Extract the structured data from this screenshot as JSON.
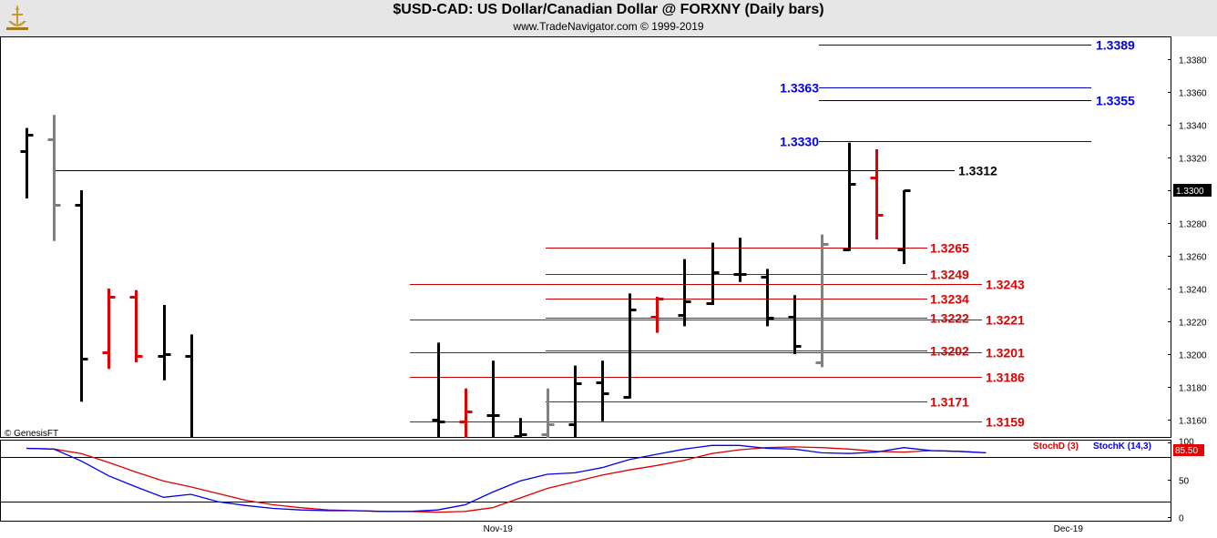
{
  "header": {
    "title": "$USD-CAD:  US Dollar/Canadian Dollar @ FORXNY  (Daily bars)",
    "subtitle": "www.TradeNavigator.com © 1999-2019",
    "logo_icon": "trade-navigator-logo-icon"
  },
  "copyright": "© GenesisFT",
  "chart_data": [
    {
      "type": "ohlc",
      "ylim": [
        1.3142,
        1.3398
      ],
      "ticks": [
        1.316,
        1.318,
        1.32,
        1.322,
        1.324,
        1.326,
        1.328,
        1.33,
        1.332,
        1.334,
        1.336,
        1.338
      ],
      "tick_labels": [
        "1.3160",
        "1.3180",
        "1.3200",
        "1.3220",
        "1.3240",
        "1.3260",
        "1.3280",
        "1.3300",
        "1.3320",
        "1.3340",
        "1.3360",
        "1.3380"
      ],
      "last_price_label": "1.3300",
      "last_price": 1.33,
      "colors": {
        "up": "#000000",
        "down": "#e00000",
        "neutral": "#808080"
      },
      "bars": [
        {
          "slot": 0,
          "o": 1.3324,
          "h": 1.3338,
          "l": 1.3295,
          "c": 1.3334,
          "color": "black"
        },
        {
          "slot": 1,
          "o": 1.3331,
          "h": 1.3346,
          "l": 1.3269,
          "c": 1.3291,
          "color": "gray"
        },
        {
          "slot": 2,
          "o": 1.3291,
          "h": 1.33,
          "l": 1.3171,
          "c": 1.3197,
          "color": "black"
        },
        {
          "slot": 3,
          "o": 1.3201,
          "h": 1.324,
          "l": 1.3191,
          "c": 1.3235,
          "color": "red"
        },
        {
          "slot": 4,
          "o": 1.3235,
          "h": 1.3239,
          "l": 1.3195,
          "c": 1.3199,
          "color": "red"
        },
        {
          "slot": 5,
          "o": 1.3199,
          "h": 1.323,
          "l": 1.3184,
          "c": 1.32,
          "color": "black"
        },
        {
          "slot": 6,
          "o": 1.3199,
          "h": 1.3212,
          "l": 1.3142,
          "c": 1.3142,
          "color": "black"
        },
        {
          "slot": 15,
          "o": 1.316,
          "h": 1.3207,
          "l": 1.3142,
          "c": 1.3159,
          "color": "black"
        },
        {
          "slot": 16,
          "o": 1.3159,
          "h": 1.3179,
          "l": 1.3142,
          "c": 1.3165,
          "color": "red"
        },
        {
          "slot": 17,
          "o": 1.3163,
          "h": 1.3196,
          "l": 1.3142,
          "c": 1.3163,
          "color": "black"
        },
        {
          "slot": 18,
          "o": 1.315,
          "h": 1.3161,
          "l": 1.3142,
          "c": 1.3151,
          "color": "black"
        },
        {
          "slot": 19,
          "o": 1.3151,
          "h": 1.3179,
          "l": 1.3142,
          "c": 1.3157,
          "color": "gray"
        },
        {
          "slot": 20,
          "o": 1.3157,
          "h": 1.3193,
          "l": 1.3142,
          "c": 1.3182,
          "color": "black"
        },
        {
          "slot": 21,
          "o": 1.3183,
          "h": 1.3196,
          "l": 1.3159,
          "c": 1.3176,
          "color": "black"
        },
        {
          "slot": 22,
          "o": 1.3174,
          "h": 1.3237,
          "l": 1.3173,
          "c": 1.3227,
          "color": "black"
        },
        {
          "slot": 23,
          "o": 1.3223,
          "h": 1.3235,
          "l": 1.3213,
          "c": 1.3234,
          "color": "red"
        },
        {
          "slot": 24,
          "o": 1.3224,
          "h": 1.3258,
          "l": 1.3217,
          "c": 1.3232,
          "color": "black"
        },
        {
          "slot": 25,
          "o": 1.3231,
          "h": 1.3268,
          "l": 1.323,
          "c": 1.325,
          "color": "black"
        },
        {
          "slot": 26,
          "o": 1.3249,
          "h": 1.3271,
          "l": 1.3244,
          "c": 1.3249,
          "color": "black"
        },
        {
          "slot": 27,
          "o": 1.3247,
          "h": 1.3252,
          "l": 1.3217,
          "c": 1.3222,
          "color": "black"
        },
        {
          "slot": 28,
          "o": 1.3223,
          "h": 1.3236,
          "l": 1.32,
          "c": 1.3205,
          "color": "black"
        },
        {
          "slot": 29,
          "o": 1.3195,
          "h": 1.3273,
          "l": 1.3192,
          "c": 1.3267,
          "color": "gray"
        },
        {
          "slot": 30,
          "o": 1.3264,
          "h": 1.3329,
          "l": 1.3263,
          "c": 1.3304,
          "color": "black"
        },
        {
          "slot": 31,
          "o": 1.3308,
          "h": 1.3325,
          "l": 1.327,
          "c": 1.3285,
          "color": "red"
        },
        {
          "slot": 32,
          "o": 1.3264,
          "h": 1.33,
          "l": 1.3255,
          "c": 1.33,
          "color": "black"
        }
      ],
      "levels": [
        {
          "price": 1.3389,
          "label": "1.3389",
          "color": "#0000ee",
          "line": "blue"
        },
        {
          "price": 1.3363,
          "label": "1.3363",
          "color": "#0000ee",
          "line": "blue"
        },
        {
          "price": 1.3355,
          "label": "1.3355",
          "color": "#0000ee",
          "line": "black"
        },
        {
          "price": 1.333,
          "label": "1.3330",
          "color": "#0000ee",
          "line": "blue"
        },
        {
          "price": 1.3312,
          "label": "1.3312",
          "color": "#000000",
          "line": "black"
        },
        {
          "price": 1.3265,
          "label": "1.3265",
          "color": "#e00000",
          "line": "red"
        },
        {
          "price": 1.3249,
          "label": "1.3249",
          "color": "#e00000",
          "line": "red"
        },
        {
          "price": 1.3243,
          "label": "1.3243",
          "color": "#e00000",
          "line": "red"
        },
        {
          "price": 1.3234,
          "label": "1.3234",
          "color": "#e00000",
          "line": "red"
        },
        {
          "price": 1.3222,
          "label": "1.3222",
          "color": "#e00000",
          "line": "red"
        },
        {
          "price": 1.3221,
          "label": "1.3221",
          "color": "#e00000",
          "line": "red"
        },
        {
          "price": 1.3202,
          "label": "1.3202",
          "color": "#e00000",
          "line": "red"
        },
        {
          "price": 1.3201,
          "label": "1.3201",
          "color": "#e00000",
          "line": "red"
        },
        {
          "price": 1.3186,
          "label": "1.3186",
          "color": "#e00000",
          "line": "red"
        },
        {
          "price": 1.3171,
          "label": "1.3171",
          "color": "#e00000",
          "line": "red"
        },
        {
          "price": 1.3159,
          "label": "1.3159",
          "color": "#e00000",
          "line": "red"
        }
      ]
    },
    {
      "type": "line",
      "ylim": [
        0,
        100
      ],
      "ticks": [
        0,
        50,
        100
      ],
      "tick_labels": [
        "0",
        "50",
        "100"
      ],
      "reference_lines": [
        20,
        80
      ],
      "last_value_label": "85.50",
      "x_labels": [
        {
          "slot": 17.2,
          "label": "Nov-19"
        },
        {
          "slot": 38,
          "label": "Dec-19"
        }
      ],
      "series": [
        {
          "name": "StochD (3)",
          "color": "#e00000",
          "values": [
            [
              0,
              92
            ],
            [
              1,
              91
            ],
            [
              2,
              85
            ],
            [
              3,
              73
            ],
            [
              4,
              60
            ],
            [
              5,
              48
            ],
            [
              6,
              40
            ],
            [
              7,
              31
            ],
            [
              8,
              22
            ],
            [
              9,
              16
            ],
            [
              10,
              12
            ],
            [
              11,
              9
            ],
            [
              12,
              8
            ],
            [
              13,
              7
            ],
            [
              14,
              7
            ],
            [
              15,
              6
            ],
            [
              16,
              7
            ],
            [
              17,
              12
            ],
            [
              18,
              25
            ],
            [
              19,
              38
            ],
            [
              20,
              47
            ],
            [
              21,
              56
            ],
            [
              22,
              63
            ],
            [
              23,
              69
            ],
            [
              24,
              76
            ],
            [
              25,
              85
            ],
            [
              26,
              90
            ],
            [
              27,
              93
            ],
            [
              28,
              94
            ],
            [
              29,
              93
            ],
            [
              30,
              91
            ],
            [
              31,
              88
            ],
            [
              32,
              87
            ],
            [
              33,
              89
            ],
            [
              34,
              88
            ],
            [
              35,
              86
            ]
          ]
        },
        {
          "name": "StochK (14,3)",
          "color": "#0000ee",
          "values": [
            [
              0,
              92
            ],
            [
              1,
              91
            ],
            [
              2,
              75
            ],
            [
              3,
              55
            ],
            [
              4,
              40
            ],
            [
              5,
              26
            ],
            [
              6,
              30
            ],
            [
              7,
              20
            ],
            [
              8,
              15
            ],
            [
              9,
              11
            ],
            [
              10,
              9
            ],
            [
              11,
              8
            ],
            [
              12,
              8
            ],
            [
              13,
              7
            ],
            [
              14,
              7
            ],
            [
              15,
              9
            ],
            [
              16,
              16
            ],
            [
              17,
              33
            ],
            [
              18,
              48
            ],
            [
              19,
              57
            ],
            [
              20,
              59
            ],
            [
              21,
              66
            ],
            [
              22,
              77
            ],
            [
              23,
              84
            ],
            [
              24,
              91
            ],
            [
              25,
              96
            ],
            [
              26,
              96
            ],
            [
              27,
              92
            ],
            [
              28,
              91
            ],
            [
              29,
              86
            ],
            [
              30,
              85
            ],
            [
              31,
              87
            ],
            [
              32,
              93
            ],
            [
              33,
              89
            ],
            [
              34,
              88
            ],
            [
              35,
              86
            ]
          ]
        }
      ]
    }
  ]
}
